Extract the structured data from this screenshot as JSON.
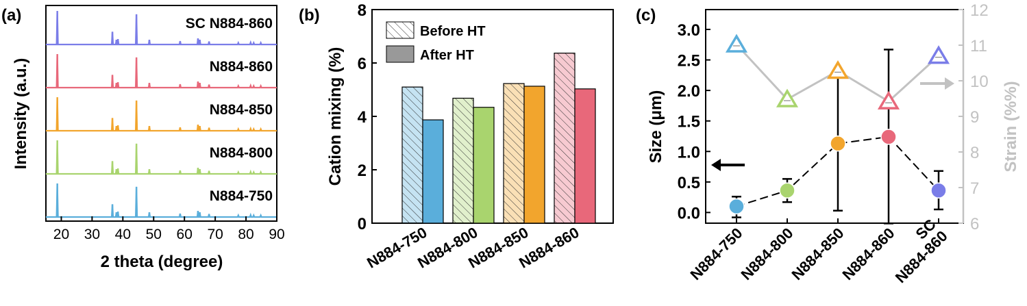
{
  "colors": {
    "c750": "#5aaedb",
    "c800": "#a9d46e",
    "c850": "#f2a52d",
    "c860": "#e8687a",
    "sc860": "#7a7de8",
    "gray": "#c2c2c2",
    "axis": "#000000"
  },
  "chart_data": [
    {
      "panel": "(a)",
      "type": "line",
      "xlabel": "2 theta (degree)",
      "ylabel": "Intensity (a.u.)",
      "xlim": [
        15,
        90
      ],
      "xticks": [
        20,
        30,
        40,
        50,
        60,
        70,
        80,
        90
      ],
      "tick_labels": [
        "20",
        "30",
        "40",
        "50",
        "60",
        "70",
        "80",
        "90"
      ],
      "peaks": [
        {
          "x": 18.7,
          "h": 1.0
        },
        {
          "x": 36.6,
          "h": 0.38
        },
        {
          "x": 37.9,
          "h": 0.14
        },
        {
          "x": 38.4,
          "h": 0.16
        },
        {
          "x": 44.4,
          "h": 0.9
        },
        {
          "x": 48.6,
          "h": 0.14
        },
        {
          "x": 58.6,
          "h": 0.1
        },
        {
          "x": 64.4,
          "h": 0.18
        },
        {
          "x": 65.0,
          "h": 0.14
        },
        {
          "x": 68.0,
          "h": 0.09
        },
        {
          "x": 77.5,
          "h": 0.05
        },
        {
          "x": 81.5,
          "h": 0.06
        },
        {
          "x": 82.5,
          "h": 0.05
        },
        {
          "x": 84.8,
          "h": 0.05
        }
      ],
      "series": [
        {
          "name": "SC N884-860",
          "color": "sc860"
        },
        {
          "name": "N884-860",
          "color": "c860"
        },
        {
          "name": "N884-850",
          "color": "c850"
        },
        {
          "name": "N884-800",
          "color": "c800"
        },
        {
          "name": "N884-750",
          "color": "c750"
        }
      ]
    },
    {
      "panel": "(b)",
      "type": "bar",
      "ylabel": "Cation mixing (%)",
      "ylim": [
        0,
        8
      ],
      "yticks": [
        0,
        2,
        4,
        6,
        8
      ],
      "tick_labels": [
        "0",
        "2",
        "4",
        "6",
        "8"
      ],
      "categories": [
        "N884-750",
        "N884-800",
        "N884-850",
        "N884-860"
      ],
      "colors": [
        "c750",
        "c800",
        "c850",
        "c860"
      ],
      "legend": [
        "Before HT",
        "After HT"
      ],
      "legend_position": "top-left",
      "series": [
        {
          "name": "Before HT",
          "values": [
            5.1,
            4.68,
            5.23,
            6.37
          ]
        },
        {
          "name": "After HT",
          "values": [
            3.87,
            4.34,
            5.13,
            5.03
          ]
        }
      ]
    },
    {
      "panel": "(c)",
      "type": "scatter",
      "ylabel": "Size (μm)",
      "y2label": "Strain (%%)",
      "ylim": [
        -0.175,
        3.325
      ],
      "y2lim": [
        6,
        12
      ],
      "yticks": [
        0.0,
        0.5,
        1.0,
        1.5,
        2.0,
        2.5,
        3.0
      ],
      "ytick_labels": [
        "0.0",
        "0.5",
        "1.0",
        "1.5",
        "2.0",
        "2.5",
        "3.0"
      ],
      "y2ticks": [
        6,
        7,
        8,
        9,
        10,
        11,
        12
      ],
      "y2tick_labels": [
        "6",
        "7",
        "8",
        "9",
        "10",
        "11",
        "12"
      ],
      "categories": [
        "N884-750",
        "N884-800",
        "N884-850",
        "N884-860",
        "SC N884-860"
      ],
      "category_lines": [
        [
          "N884-750"
        ],
        [
          "N884-800"
        ],
        [
          "N884-850"
        ],
        [
          "N884-860"
        ],
        [
          "SC",
          "N884-860"
        ]
      ],
      "colors": [
        "c750",
        "c800",
        "c850",
        "c860",
        "sc860"
      ],
      "size": {
        "values": [
          0.1,
          0.36,
          1.13,
          1.24,
          0.36
        ],
        "err_low": [
          -0.08,
          0.17,
          0.03,
          -0.18,
          0.05
        ],
        "err_high": [
          0.26,
          0.55,
          2.21,
          2.67,
          0.68
        ]
      },
      "strain": {
        "values": [
          11.02,
          9.48,
          10.28,
          9.42,
          10.7
        ]
      }
    }
  ]
}
